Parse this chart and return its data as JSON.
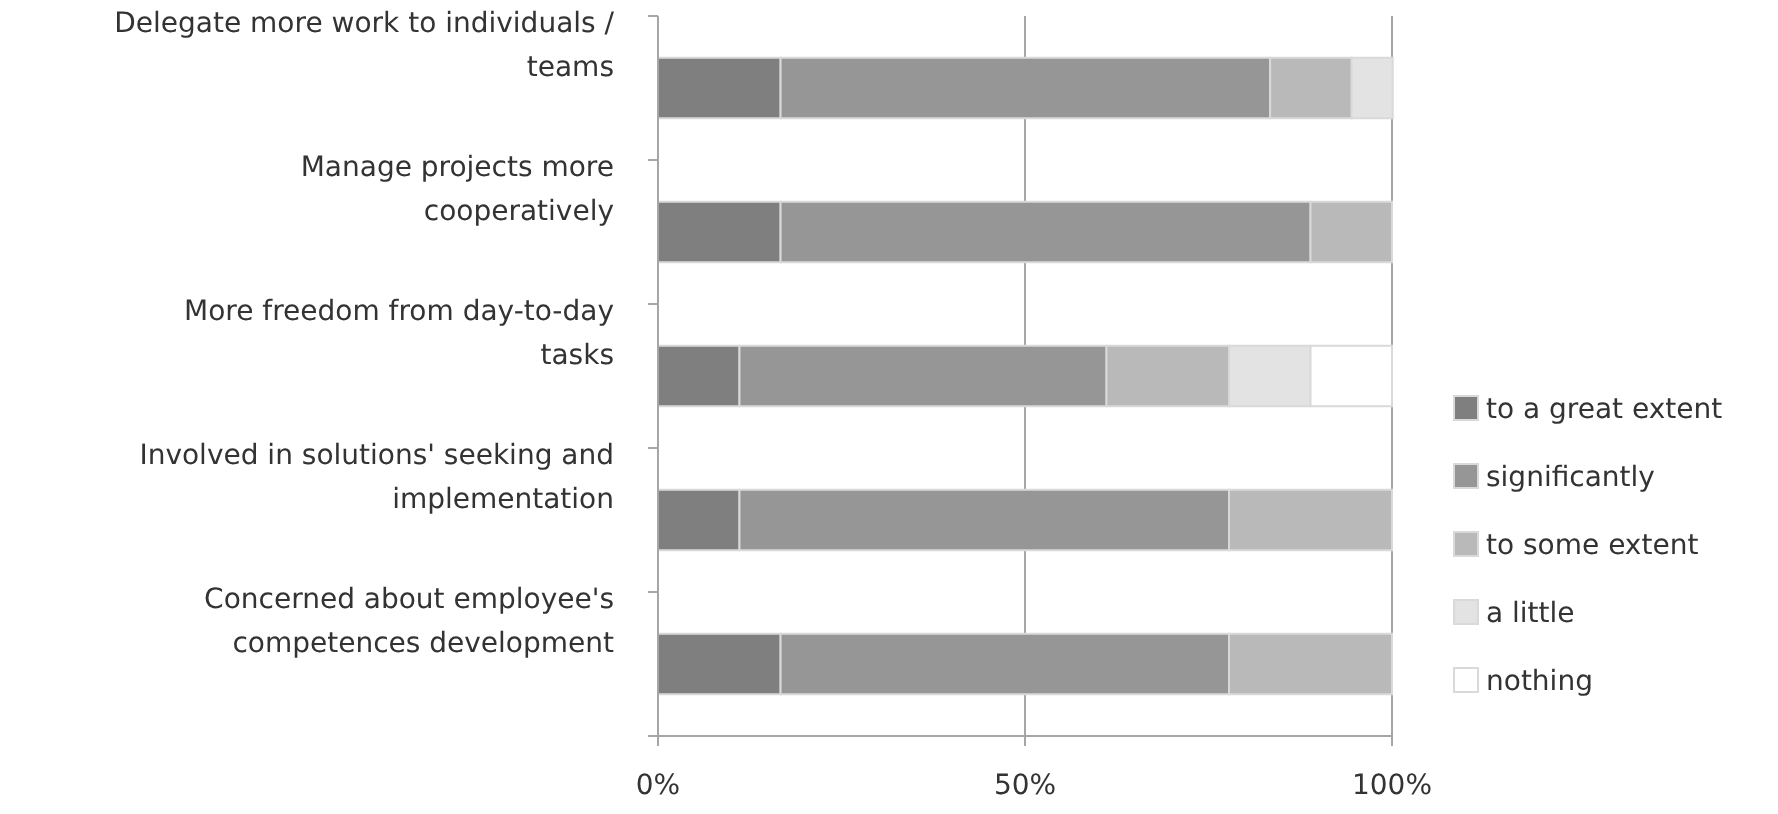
{
  "chart_data": {
    "type": "bar",
    "orientation": "horizontal",
    "stacked": true,
    "categories": [
      "Delegate more work to individuals / teams",
      "Manage projects more cooperatively",
      "More freedom from day-to-day tasks",
      "Involved in solutions' seeking and implementation",
      "Concerned about employee's competences development"
    ],
    "series": [
      {
        "name": "to a great extent",
        "color": "#7f7f7f",
        "values": [
          16.7,
          16.7,
          11.1,
          11.1,
          16.7
        ]
      },
      {
        "name": "significantly",
        "color": "#969696",
        "values": [
          66.7,
          72.2,
          50,
          66.7,
          61.1
        ]
      },
      {
        "name": "to some extent",
        "color": "#b9b9b9",
        "values": [
          11.1,
          11.1,
          16.7,
          22.2,
          22.2
        ]
      },
      {
        "name": "a little",
        "color": "#e3e3e3",
        "values": [
          5.6,
          0,
          11.1,
          0,
          0
        ]
      },
      {
        "name": "nothing",
        "color": "#ffffff",
        "values": [
          0,
          0,
          11.1,
          0,
          0
        ]
      }
    ],
    "xlim": [
      0,
      100
    ],
    "xticks": [
      {
        "value": 0,
        "label": "0%"
      },
      {
        "value": 50,
        "label": "50%"
      },
      {
        "value": 100,
        "label": "100%"
      }
    ],
    "grid": "x",
    "legend": "right"
  }
}
